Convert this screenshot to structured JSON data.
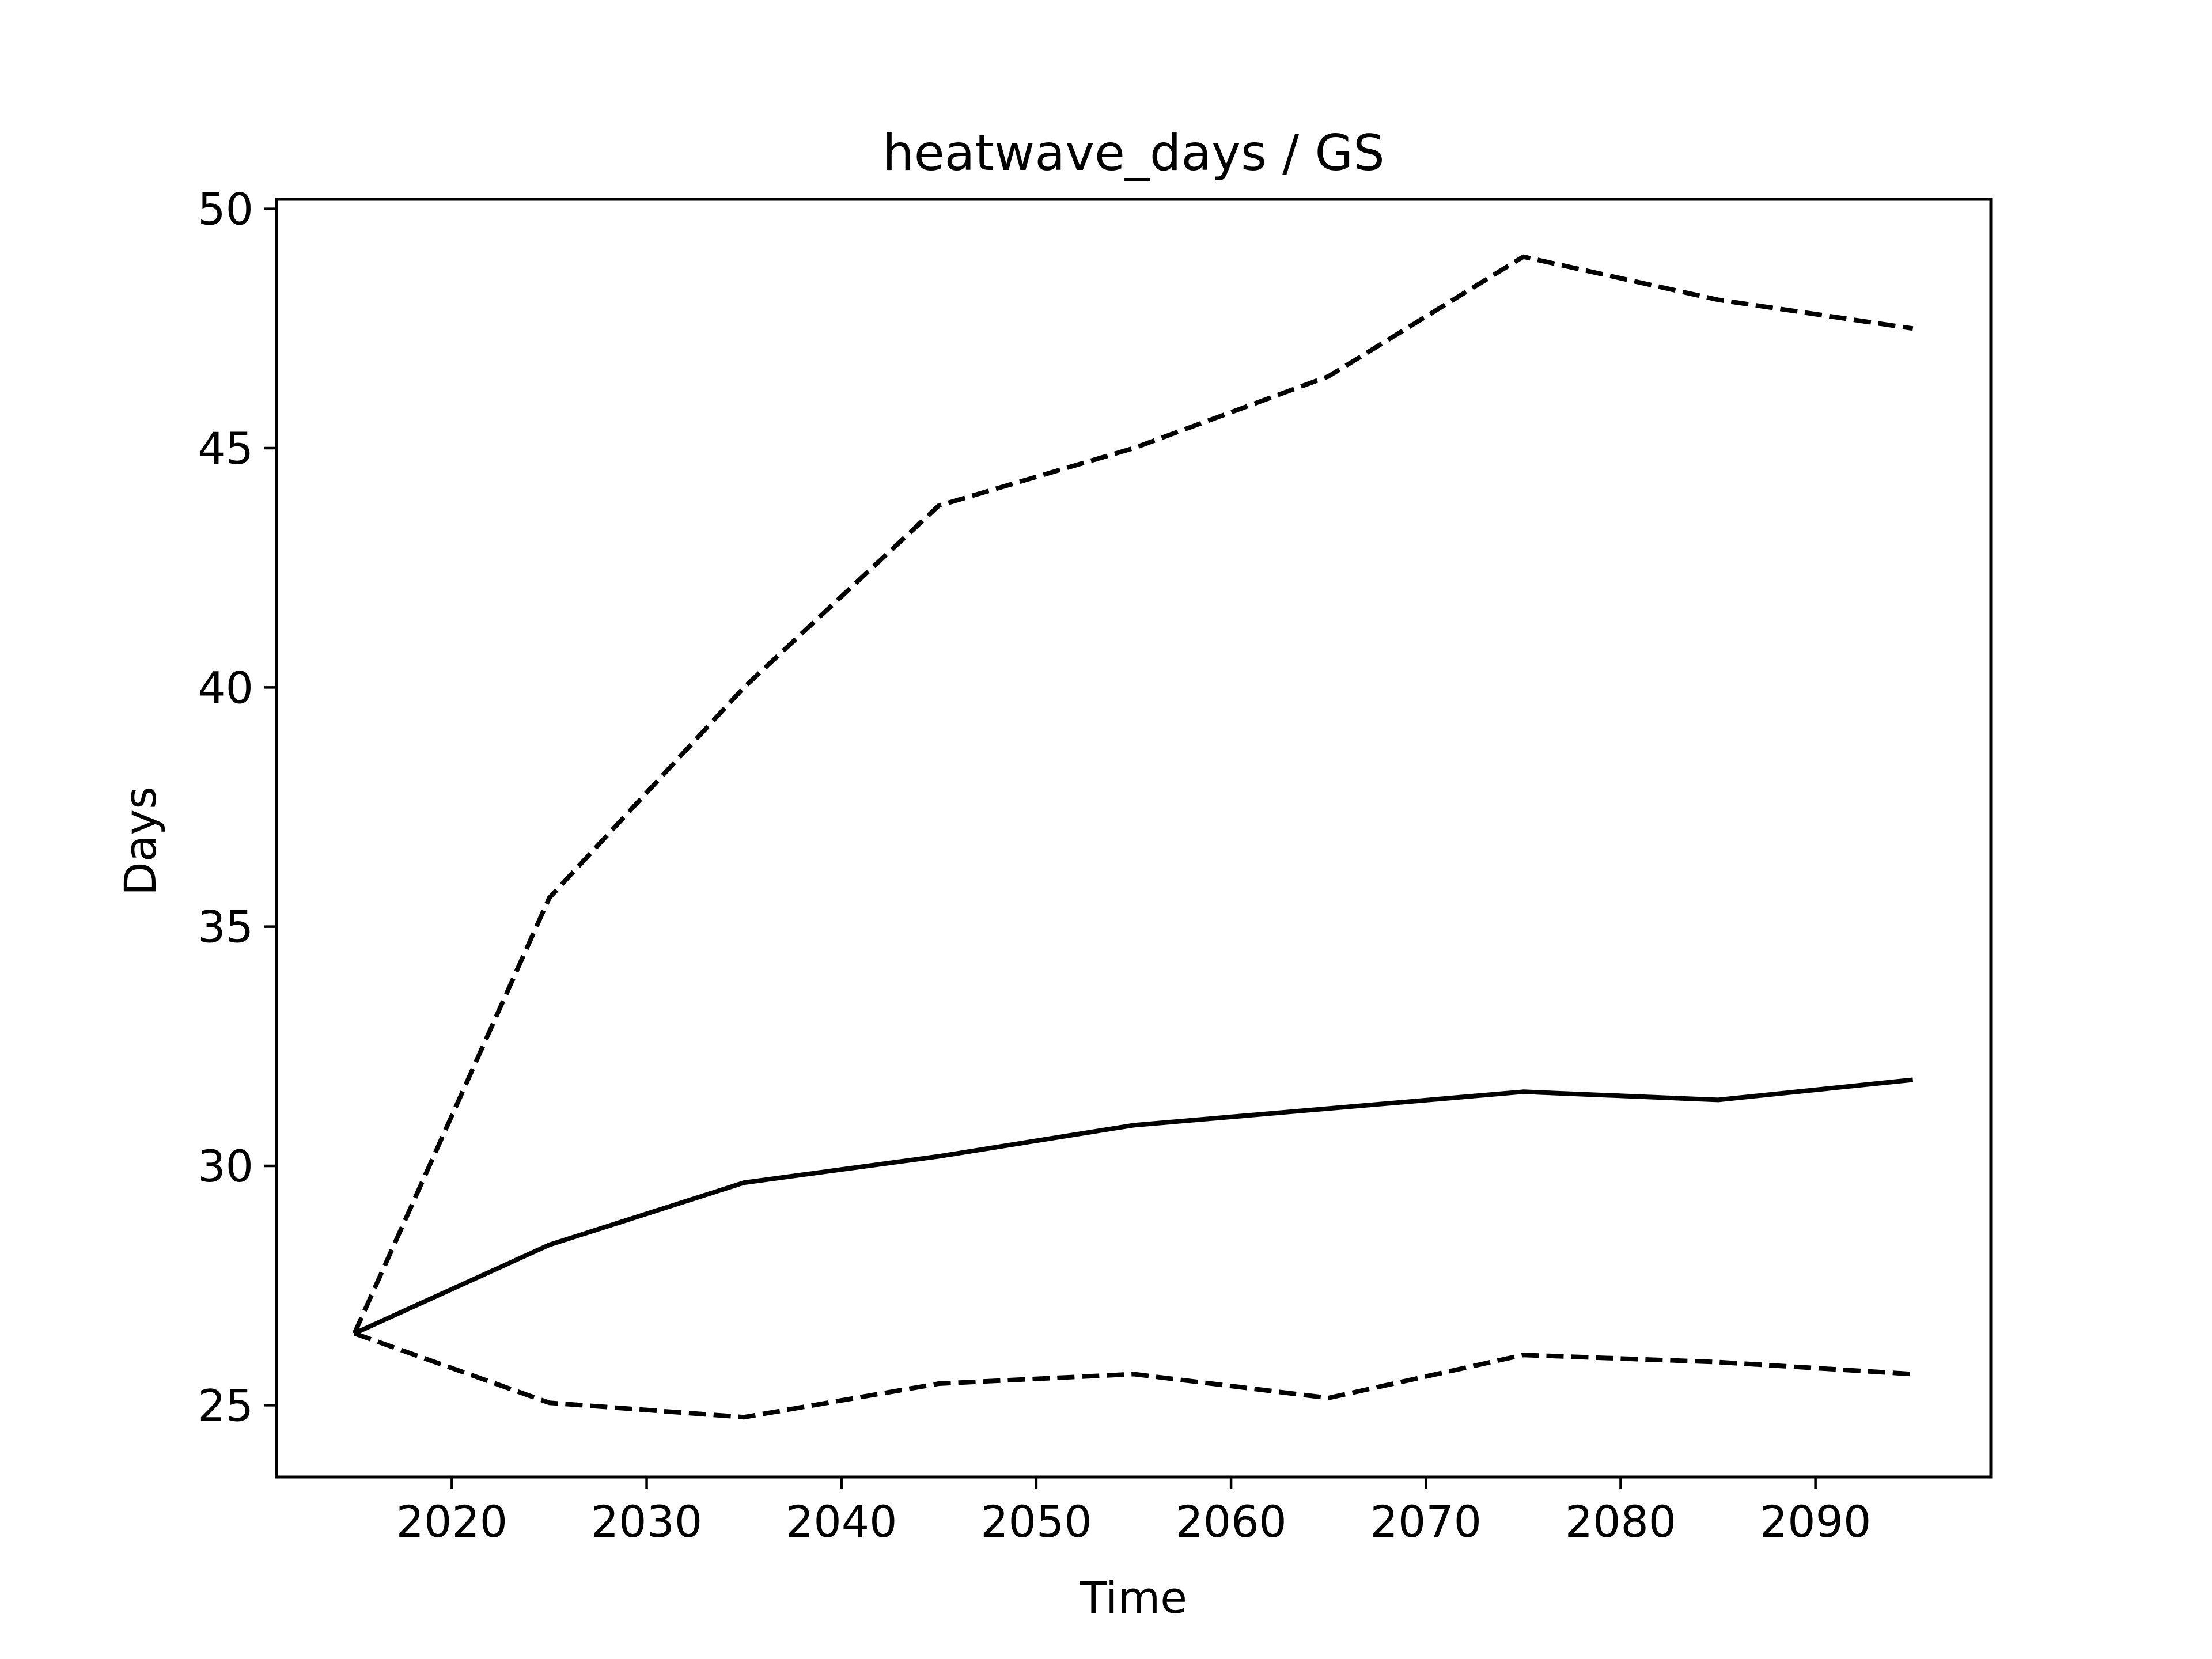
{
  "chart_data": {
    "type": "line",
    "title": "heatwave_days / GS",
    "xlabel": "Time",
    "ylabel": "Days",
    "xlim": [
      2011,
      2099
    ],
    "ylim": [
      23.5,
      50.2
    ],
    "xticks": [
      2020,
      2030,
      2040,
      2050,
      2060,
      2070,
      2080,
      2090
    ],
    "yticks": [
      25,
      30,
      35,
      40,
      45,
      50
    ],
    "grid": false,
    "x": [
      2015,
      2025,
      2035,
      2045,
      2055,
      2065,
      2075,
      2085,
      2095
    ],
    "series": [
      {
        "style": "dashed",
        "color": "#000000",
        "values": [
          26.5,
          35.6,
          40.0,
          43.8,
          45.0,
          46.5,
          49.0,
          48.1,
          47.5
        ]
      },
      {
        "style": "solid",
        "color": "#000000",
        "values": [
          26.5,
          28.35,
          29.65,
          30.2,
          30.85,
          31.2,
          31.55,
          31.38,
          31.8
        ]
      },
      {
        "style": "dashed",
        "color": "#000000",
        "values": [
          26.5,
          25.05,
          24.75,
          25.45,
          25.65,
          25.15,
          26.05,
          25.9,
          25.65
        ]
      }
    ]
  }
}
